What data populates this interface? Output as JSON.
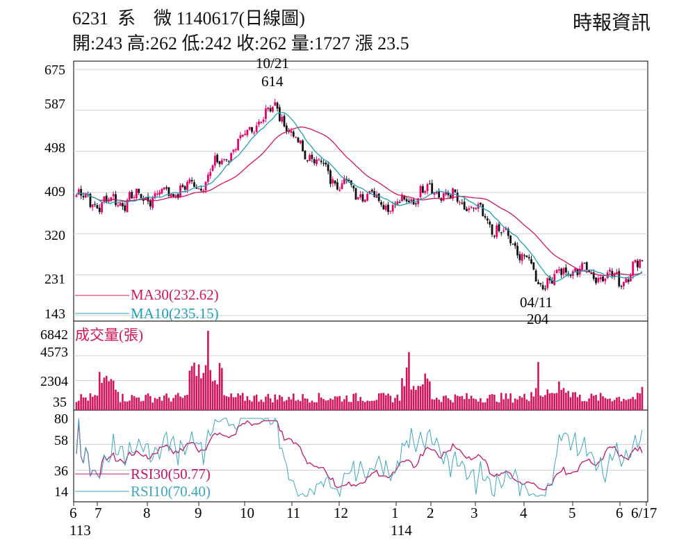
{
  "header": {
    "title": "6231  系    微 1140617(日線圖)",
    "ohlc": "開:243 高:262 低:242 收:262 量:1727 漲 23.5",
    "source": "時報資訊"
  },
  "colors": {
    "up": "#e8006f",
    "down": "#111111",
    "ma30": "#d4145a",
    "ma10": "#1ca0b8",
    "vol": "#d4145a",
    "rsi30": "#c0156b",
    "rsi10": "#3aa6c0",
    "grid": "#cfcfcf"
  },
  "chart_data": [
    {
      "type": "candlestick",
      "name": "price",
      "yticks": [
        "675",
        "587",
        "498",
        "409",
        "320",
        "231",
        "143"
      ],
      "ylim": [
        143,
        675
      ],
      "legend": [
        "MA30(232.62)",
        "MA10(235.15)"
      ],
      "annotations": [
        {
          "date": "10/21",
          "value": "614"
        },
        {
          "date": "04/11",
          "value": "204"
        }
      ],
      "anchors_month_close": [
        {
          "month": "6/113",
          "close": 405
        },
        {
          "month": "7",
          "close": 385
        },
        {
          "month": "8",
          "close": 400
        },
        {
          "month": "9",
          "close": 425
        },
        {
          "month": "10",
          "close": 530
        },
        {
          "month": "10/21",
          "close": 600
        },
        {
          "month": "11",
          "close": 525
        },
        {
          "month": "12",
          "close": 430
        },
        {
          "month": "1/114",
          "close": 378
        },
        {
          "month": "2",
          "close": 420
        },
        {
          "month": "3",
          "close": 370
        },
        {
          "month": "4",
          "close": 275
        },
        {
          "month": "04/11",
          "close": 210
        },
        {
          "month": "5",
          "close": 245
        },
        {
          "month": "6",
          "close": 221
        },
        {
          "month": "6/17",
          "close": 262
        }
      ],
      "last": {
        "open": 243,
        "high": 262,
        "low": 242,
        "close": 262
      }
    },
    {
      "type": "bar",
      "name": "volume",
      "label": "成交量(張)",
      "yticks": [
        "6842",
        "4573",
        "2304",
        "35"
      ],
      "ylim": [
        0,
        6842
      ],
      "peaks": [
        {
          "month": "9",
          "value": 6842
        },
        {
          "month": "1/114",
          "value": 4900
        },
        {
          "month": "4",
          "value": 4000
        }
      ],
      "last_value": 1727
    },
    {
      "type": "line",
      "name": "rsi",
      "yticks": [
        "80",
        "58",
        "36",
        "14"
      ],
      "ylim": [
        14,
        80
      ],
      "series": [
        {
          "name": "RSI30(50.77)",
          "last": 50.77
        },
        {
          "name": "RSI10(70.40)",
          "last": 70.4
        }
      ]
    }
  ],
  "x_axis": {
    "months": [
      "6",
      "7",
      "8",
      "9",
      "10",
      "11",
      "12",
      "1",
      "2",
      "3",
      "4",
      "5",
      "6",
      "6/17"
    ],
    "years": [
      "113",
      "114"
    ]
  }
}
